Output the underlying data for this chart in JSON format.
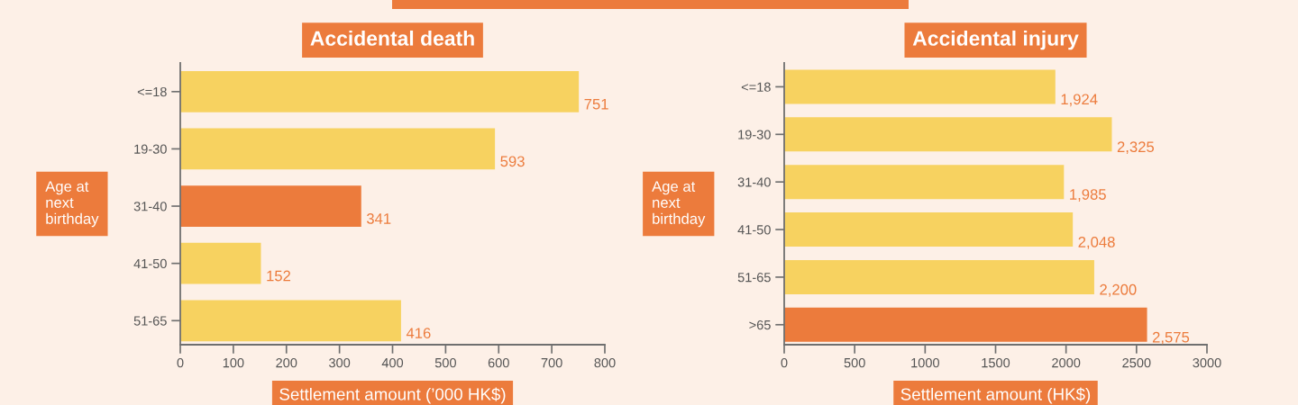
{
  "chart_data": [
    {
      "type": "bar",
      "orientation": "horizontal",
      "title": "Accidental death",
      "xlabel": "Settlement amount (’000 HK$)",
      "ylabel": "Age at\nnext\nbirthday",
      "categories": [
        "<=18",
        "19-30",
        "31-40",
        "41-50",
        "51-65"
      ],
      "values": [
        751,
        593,
        341,
        152,
        416
      ],
      "colors": [
        "#f7d260",
        "#f7d260",
        "#ec7b3c",
        "#f7d260",
        "#f7d260"
      ],
      "xlim": [
        0,
        800
      ],
      "xticks": [
        0,
        100,
        200,
        300,
        400,
        500,
        600,
        700,
        800
      ],
      "data_labels": true,
      "grid": false,
      "legend": false
    },
    {
      "type": "bar",
      "orientation": "horizontal",
      "title": "Accidental injury",
      "xlabel": "Settlement amount (HK$)",
      "ylabel": "Age at\nnext\nbirthday",
      "categories": [
        "<=18",
        "19-30",
        "31-40",
        "41-50",
        "51-65",
        ">65"
      ],
      "values": [
        1924,
        2325,
        1985,
        2048,
        2200,
        2575
      ],
      "colors": [
        "#f7d260",
        "#f7d260",
        "#f7d260",
        "#f7d260",
        "#f7d260",
        "#ec7b3c"
      ],
      "xlim": [
        0,
        3000
      ],
      "xticks": [
        0,
        500,
        1000,
        1500,
        2000,
        2500,
        3000
      ],
      "value_labels": [
        "1,924",
        "2,325",
        "1,985",
        "2,048",
        "2,200",
        "2,575"
      ],
      "grid": false,
      "legend": false
    }
  ]
}
